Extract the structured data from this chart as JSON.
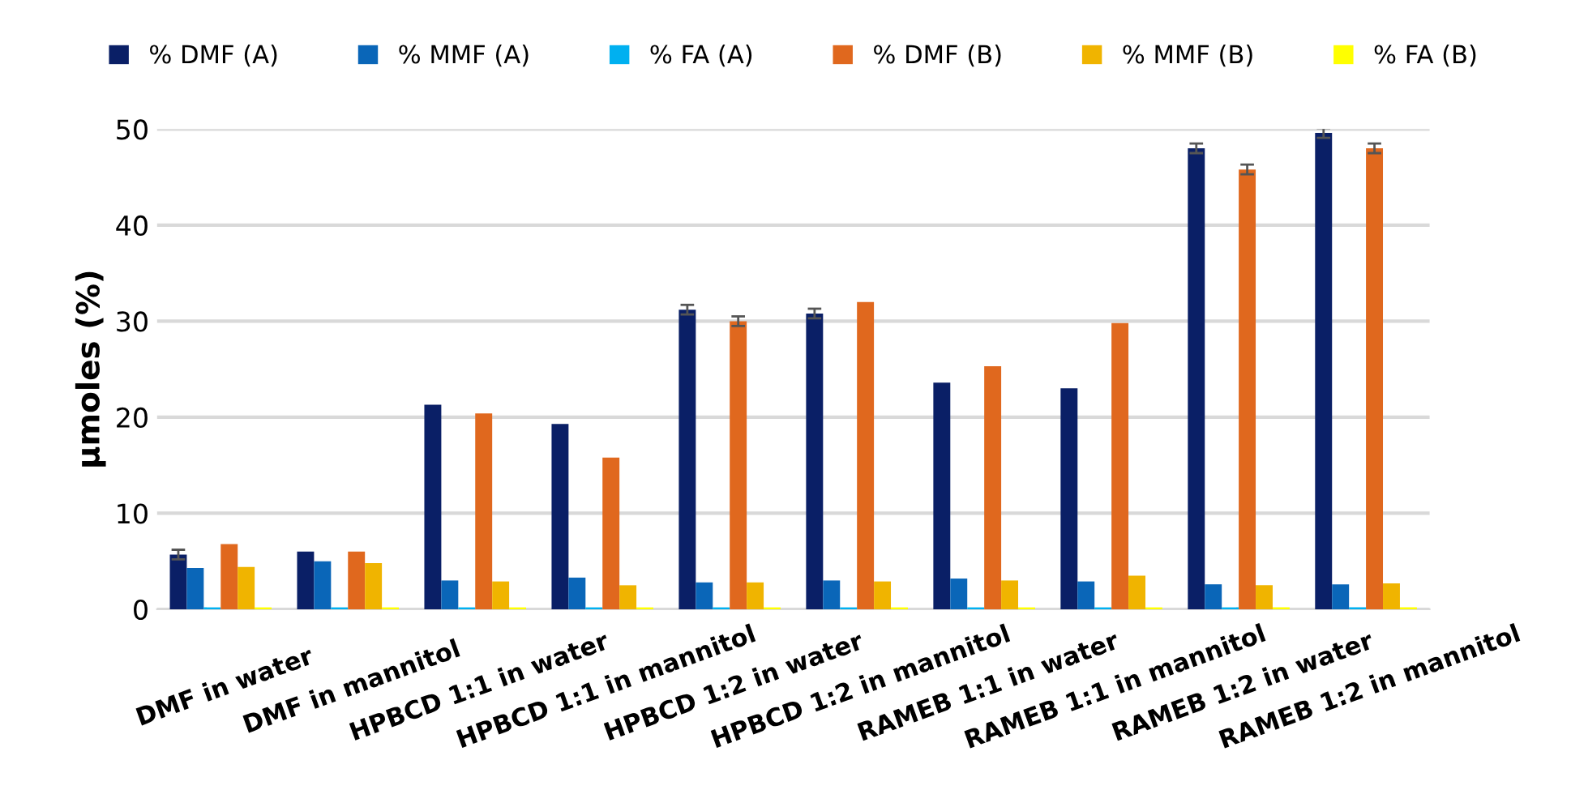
{
  "chart_data": {
    "type": "bar",
    "ylabel": "µmoles (%)",
    "categories": [
      "DMF in water",
      "DMF in mannitol",
      "HPBCD 1:1 in water",
      "HPBCD 1:1 in mannitol",
      "HPBCD 1:2 in water",
      "HPBCD 1:2 in mannitol",
      "RAMEB 1:1 in water",
      "RAMEB 1:1 in mannitol",
      "RAMEB 1:2 in water",
      "RAMEB 1:2 in mannitol"
    ],
    "series": [
      {
        "name": "% DMF (A)",
        "color": "#0a1f66",
        "values": [
          5.7,
          6.0,
          21.3,
          19.3,
          31.2,
          30.8,
          23.6,
          23.0,
          48.0,
          49.6
        ],
        "errors": [
          0.5,
          null,
          null,
          null,
          0.5,
          0.5,
          null,
          null,
          0.5,
          0.5
        ]
      },
      {
        "name": "% MMF (A)",
        "color": "#0a66b8",
        "values": [
          4.3,
          5.0,
          3.0,
          3.3,
          2.8,
          3.0,
          3.2,
          2.9,
          2.6,
          2.6
        ]
      },
      {
        "name": "% FA (A)",
        "color": "#00b0f0",
        "values": [
          0.2,
          0.2,
          0.2,
          0.2,
          0.2,
          0.2,
          0.2,
          0.2,
          0.2,
          0.2
        ]
      },
      {
        "name": "% DMF (B)",
        "color": "#e0681e",
        "values": [
          6.8,
          6.0,
          20.4,
          15.8,
          30.0,
          32.0,
          25.3,
          29.8,
          45.8,
          48.0
        ],
        "errors": [
          null,
          null,
          null,
          null,
          0.5,
          null,
          null,
          null,
          0.5,
          0.5
        ]
      },
      {
        "name": "% MMF (B)",
        "color": "#f0b400",
        "values": [
          4.4,
          4.8,
          2.9,
          2.5,
          2.8,
          2.9,
          3.0,
          3.5,
          2.5,
          2.7
        ]
      },
      {
        "name": "% FA (B)",
        "color": "#ffff00",
        "values": [
          0.2,
          0.2,
          0.2,
          0.2,
          0.2,
          0.2,
          0.2,
          0.2,
          0.2,
          0.2
        ]
      }
    ],
    "ylim": [
      0,
      50
    ],
    "yticks": [
      0,
      10,
      20,
      30,
      40,
      50
    ],
    "grid": "y",
    "legend": "top"
  }
}
